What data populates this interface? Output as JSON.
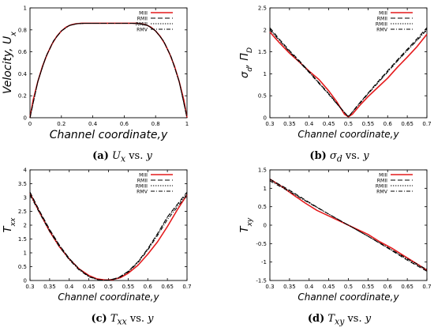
{
  "colors": {
    "red": "#e41a1c",
    "black": "#000000"
  },
  "legend_labels": [
    "MIII",
    "RMII",
    "RMIII",
    "RMV"
  ],
  "chart_data": [
    {
      "type": "line",
      "caption": {
        "tag": "(a)",
        "var": "U",
        "sub": "x",
        "rest": " vs. ",
        "yvar": "y"
      },
      "xlabel": "Channel coordinate,y",
      "ylabel": "Velocity, U",
      "ylabel_sub": "x",
      "xlim": [
        0,
        1
      ],
      "ylim": [
        0,
        1
      ],
      "x_ticks": [
        "0",
        "0.2",
        "0.4",
        "0.6",
        "0.8",
        "1"
      ],
      "y_ticks": [
        "0",
        "0.2",
        "0.4",
        "0.6",
        "0.8",
        "1"
      ],
      "legend_position": "top-right",
      "series": [
        {
          "name": "MIII",
          "style": "solid-red",
          "x": [
            0,
            0.02,
            0.05,
            0.08,
            0.11,
            0.14,
            0.17,
            0.2,
            0.23,
            0.26,
            0.29,
            0.31,
            0.33,
            0.35,
            0.5,
            0.65,
            0.67,
            0.69,
            0.71,
            0.74,
            0.77,
            0.8,
            0.83,
            0.86,
            0.89,
            0.92,
            0.95,
            0.98,
            1
          ],
          "y": [
            0,
            0.16,
            0.33,
            0.47,
            0.58,
            0.67,
            0.74,
            0.79,
            0.825,
            0.845,
            0.855,
            0.858,
            0.86,
            0.86,
            0.86,
            0.86,
            0.86,
            0.858,
            0.855,
            0.845,
            0.825,
            0.79,
            0.74,
            0.67,
            0.58,
            0.47,
            0.33,
            0.16,
            0
          ]
        },
        {
          "name": "RMII",
          "style": "dashed",
          "x": [
            0,
            0.05,
            0.1,
            0.15,
            0.2,
            0.25,
            0.3,
            0.35,
            0.5,
            0.65,
            0.7,
            0.75,
            0.8,
            0.85,
            0.9,
            0.95,
            1
          ],
          "y": [
            0,
            0.33,
            0.55,
            0.7,
            0.79,
            0.84,
            0.856,
            0.86,
            0.86,
            0.86,
            0.856,
            0.84,
            0.79,
            0.7,
            0.55,
            0.33,
            0
          ]
        },
        {
          "name": "RMIII",
          "style": "dotted",
          "x": [
            0,
            0.05,
            0.1,
            0.15,
            0.2,
            0.25,
            0.3,
            0.35,
            0.5,
            0.65,
            0.7,
            0.75,
            0.8,
            0.85,
            0.9,
            0.95,
            1
          ],
          "y": [
            0,
            0.33,
            0.55,
            0.7,
            0.79,
            0.84,
            0.856,
            0.86,
            0.86,
            0.86,
            0.856,
            0.84,
            0.79,
            0.7,
            0.55,
            0.33,
            0
          ]
        },
        {
          "name": "RMV",
          "style": "dashdot",
          "x": [
            0,
            0.05,
            0.1,
            0.15,
            0.2,
            0.25,
            0.3,
            0.35,
            0.5,
            0.65,
            0.7,
            0.75,
            0.8,
            0.85,
            0.9,
            0.95,
            1
          ],
          "y": [
            0,
            0.33,
            0.55,
            0.7,
            0.79,
            0.84,
            0.856,
            0.86,
            0.86,
            0.86,
            0.856,
            0.84,
            0.79,
            0.7,
            0.55,
            0.33,
            0
          ]
        }
      ]
    },
    {
      "type": "line",
      "caption": {
        "tag": "(b)",
        "var": "σ",
        "sub": "d",
        "rest": " vs. ",
        "yvar": "y"
      },
      "xlabel": "Channel coordinate,y",
      "ylabel": "σ",
      "ylabel_sub": "d",
      "ylabel_extra": ", Π",
      "ylabel_extra_sub": "D",
      "xlim": [
        0.3,
        0.7
      ],
      "ylim": [
        0,
        2.5
      ],
      "x_ticks": [
        "0.3",
        "0.35",
        "0.4",
        "0.45",
        "0.5",
        "0.55",
        "0.6",
        "0.65",
        "0.7"
      ],
      "y_ticks": [
        "0",
        "0.5",
        "1",
        "1.5",
        "2",
        "2.5"
      ],
      "legend_position": "top-right",
      "series": [
        {
          "name": "MIII",
          "style": "solid-red",
          "x": [
            0.3,
            0.325,
            0.35,
            0.375,
            0.4,
            0.425,
            0.45,
            0.47,
            0.49,
            0.5,
            0.51,
            0.53,
            0.55,
            0.575,
            0.6,
            0.625,
            0.65,
            0.675,
            0.7
          ],
          "y": [
            1.95,
            1.7,
            1.47,
            1.27,
            1.06,
            0.87,
            0.61,
            0.37,
            0.08,
            0.02,
            0.08,
            0.29,
            0.48,
            0.69,
            0.9,
            1.15,
            1.38,
            1.62,
            1.9
          ]
        },
        {
          "name": "RMII",
          "style": "dashed",
          "x": [
            0.3,
            0.325,
            0.35,
            0.375,
            0.4,
            0.425,
            0.45,
            0.475,
            0.5,
            0.525,
            0.55,
            0.575,
            0.6,
            0.625,
            0.65,
            0.675,
            0.7
          ],
          "y": [
            2.05,
            1.78,
            1.53,
            1.3,
            1.05,
            0.8,
            0.55,
            0.28,
            0.02,
            0.3,
            0.56,
            0.82,
            1.07,
            1.32,
            1.56,
            1.8,
            2.05
          ]
        },
        {
          "name": "RMIII",
          "style": "dotted",
          "x": [
            0.3,
            0.325,
            0.35,
            0.375,
            0.4,
            0.425,
            0.45,
            0.475,
            0.5,
            0.525,
            0.55,
            0.575,
            0.6,
            0.625,
            0.65,
            0.675,
            0.7
          ],
          "y": [
            2.02,
            1.76,
            1.51,
            1.28,
            1.04,
            0.79,
            0.54,
            0.27,
            0.02,
            0.29,
            0.55,
            0.8,
            1.05,
            1.3,
            1.54,
            1.77,
            2.02
          ]
        },
        {
          "name": "RMV",
          "style": "dashdot",
          "x": [
            0.3,
            0.325,
            0.35,
            0.375,
            0.4,
            0.425,
            0.45,
            0.475,
            0.5,
            0.525,
            0.55,
            0.575,
            0.6,
            0.625,
            0.65,
            0.675,
            0.7
          ],
          "y": [
            2.0,
            1.75,
            1.5,
            1.27,
            1.03,
            0.78,
            0.53,
            0.27,
            0.02,
            0.28,
            0.54,
            0.79,
            1.04,
            1.29,
            1.53,
            1.76,
            2.0
          ]
        }
      ]
    },
    {
      "type": "line",
      "caption": {
        "tag": "(c)",
        "var": "T",
        "sub": "xx",
        "rest": " vs. ",
        "yvar": "y"
      },
      "xlabel": "Channel coordinate,y",
      "ylabel": "T",
      "ylabel_sub": "xx",
      "xlim": [
        0.3,
        0.7
      ],
      "ylim": [
        0,
        4
      ],
      "x_ticks": [
        "0.3",
        "0.35",
        "0.4",
        "0.45",
        "0.5",
        "0.55",
        "0.6",
        "0.65",
        "0.7"
      ],
      "y_ticks": [
        "0",
        "0.5",
        "1",
        "1.5",
        "2",
        "2.5",
        "3",
        "3.5",
        "4"
      ],
      "legend_position": "top-right",
      "series": [
        {
          "name": "MIII",
          "style": "solid-red",
          "x": [
            0.3,
            0.325,
            0.35,
            0.375,
            0.4,
            0.425,
            0.45,
            0.47,
            0.49,
            0.5,
            0.51,
            0.53,
            0.55,
            0.575,
            0.6,
            0.625,
            0.65,
            0.675,
            0.7
          ],
          "y": [
            3.15,
            2.45,
            1.78,
            1.22,
            0.78,
            0.42,
            0.18,
            0.06,
            0.02,
            0.02,
            0.03,
            0.1,
            0.26,
            0.55,
            0.95,
            1.4,
            1.95,
            2.55,
            3.1
          ]
        },
        {
          "name": "RMII",
          "style": "dashed",
          "x": [
            0.3,
            0.325,
            0.35,
            0.375,
            0.4,
            0.425,
            0.45,
            0.475,
            0.5,
            0.525,
            0.55,
            0.575,
            0.6,
            0.625,
            0.65,
            0.675,
            0.7
          ],
          "y": [
            3.2,
            2.5,
            1.85,
            1.28,
            0.8,
            0.42,
            0.15,
            0.02,
            0.01,
            0.1,
            0.33,
            0.68,
            1.15,
            1.7,
            2.3,
            2.75,
            3.2
          ]
        },
        {
          "name": "RMIII",
          "style": "dotted",
          "x": [
            0.3,
            0.325,
            0.35,
            0.375,
            0.4,
            0.425,
            0.45,
            0.475,
            0.5,
            0.525,
            0.55,
            0.575,
            0.6,
            0.625,
            0.65,
            0.675,
            0.7
          ],
          "y": [
            3.15,
            2.48,
            1.83,
            1.27,
            0.79,
            0.41,
            0.15,
            0.02,
            0.01,
            0.1,
            0.32,
            0.67,
            1.13,
            1.68,
            2.28,
            2.72,
            3.15
          ]
        },
        {
          "name": "RMV",
          "style": "dashdot",
          "x": [
            0.3,
            0.325,
            0.35,
            0.375,
            0.4,
            0.425,
            0.45,
            0.475,
            0.5,
            0.525,
            0.55,
            0.575,
            0.6,
            0.625,
            0.65,
            0.675,
            0.7
          ],
          "y": [
            3.1,
            2.42,
            1.78,
            1.22,
            0.75,
            0.38,
            0.13,
            0.02,
            0.01,
            0.08,
            0.3,
            0.64,
            1.1,
            1.63,
            2.2,
            2.65,
            3.1
          ]
        }
      ]
    },
    {
      "type": "line",
      "caption": {
        "tag": "(d)",
        "var": "T",
        "sub": "xy",
        "rest": " vs. ",
        "yvar": "y"
      },
      "xlabel": "Channel coordinate,y",
      "ylabel": "T",
      "ylabel_sub": "xy",
      "xlim": [
        0.3,
        0.7
      ],
      "ylim": [
        -1.5,
        1.5
      ],
      "x_ticks": [
        "0.3",
        "0.35",
        "0.4",
        "0.45",
        "0.5",
        "0.55",
        "0.6",
        "0.65",
        "0.7"
      ],
      "y_ticks": [
        "-1.5",
        "-1",
        "-0.5",
        "0",
        "0.5",
        "1",
        "1.5"
      ],
      "legend_position": "top-right",
      "series": [
        {
          "name": "MIII",
          "style": "solid-red",
          "x": [
            0.3,
            0.33,
            0.36,
            0.39,
            0.42,
            0.45,
            0.48,
            0.5,
            0.52,
            0.55,
            0.58,
            0.61,
            0.64,
            0.67,
            0.7
          ],
          "y": [
            1.25,
            1.05,
            0.82,
            0.6,
            0.4,
            0.25,
            0.1,
            0.0,
            -0.1,
            -0.25,
            -0.45,
            -0.62,
            -0.82,
            -1.02,
            -1.22
          ]
        },
        {
          "name": "RMII",
          "style": "dashed",
          "x": [
            0.3,
            0.35,
            0.4,
            0.45,
            0.5,
            0.55,
            0.6,
            0.65,
            0.7
          ],
          "y": [
            1.25,
            0.95,
            0.62,
            0.3,
            0.0,
            -0.3,
            -0.62,
            -0.95,
            -1.25
          ]
        },
        {
          "name": "RMIII",
          "style": "dotted",
          "x": [
            0.3,
            0.35,
            0.4,
            0.45,
            0.5,
            0.55,
            0.6,
            0.65,
            0.7
          ],
          "y": [
            1.23,
            0.93,
            0.61,
            0.3,
            0.0,
            -0.3,
            -0.61,
            -0.93,
            -1.23
          ]
        },
        {
          "name": "RMV",
          "style": "dashdot",
          "x": [
            0.3,
            0.35,
            0.4,
            0.45,
            0.5,
            0.55,
            0.6,
            0.65,
            0.7
          ],
          "y": [
            1.2,
            0.91,
            0.6,
            0.3,
            0.0,
            -0.3,
            -0.6,
            -0.91,
            -1.2
          ]
        }
      ]
    }
  ]
}
